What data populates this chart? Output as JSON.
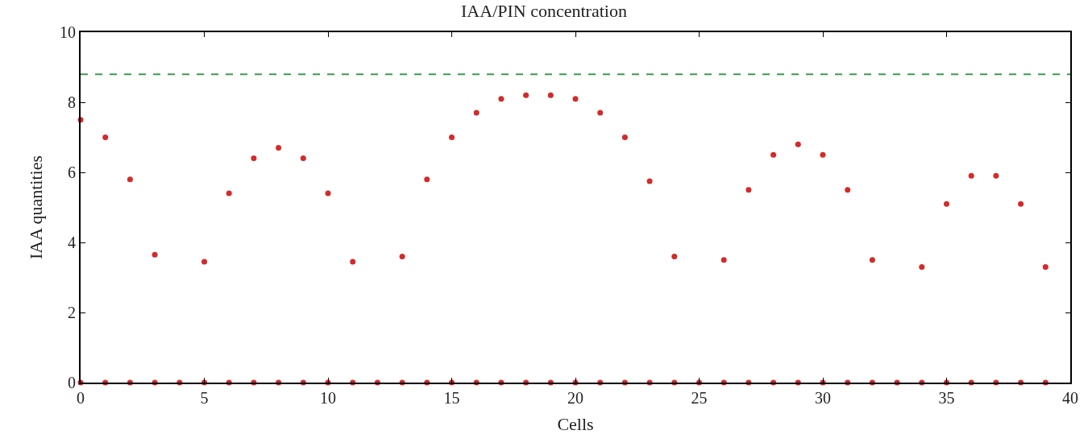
{
  "chart_data": {
    "type": "scatter",
    "title": "IAA/PIN concentration",
    "xlabel": "Cells",
    "ylabel": "IAA quantities",
    "x": [
      0,
      1,
      2,
      3,
      4,
      5,
      6,
      7,
      8,
      9,
      10,
      11,
      12,
      13,
      14,
      15,
      16,
      17,
      18,
      19,
      20,
      21,
      22,
      23,
      24,
      25,
      26,
      27,
      28,
      29,
      30,
      31,
      32,
      33,
      34,
      35,
      36,
      37,
      38,
      39
    ],
    "series": [
      {
        "color": "#d42a2a",
        "values": [
          7.5,
          7.0,
          5.8,
          3.65,
          null,
          3.45,
          5.4,
          6.4,
          6.7,
          6.4,
          5.4,
          3.45,
          null,
          3.6,
          5.8,
          7.0,
          7.7,
          8.1,
          8.2,
          8.2,
          8.1,
          7.7,
          7.0,
          5.75,
          3.6,
          null,
          3.5,
          5.5,
          6.5,
          6.8,
          6.5,
          5.5,
          3.5,
          null,
          3.3,
          5.1,
          5.9,
          5.9,
          5.1,
          3.3
        ]
      },
      {
        "color": "#d42a2a",
        "values": [
          0,
          0,
          0,
          0,
          0,
          0,
          0,
          0,
          0,
          0,
          0,
          0,
          0,
          0,
          0,
          0,
          0,
          0,
          0,
          0,
          0,
          0,
          0,
          0,
          0,
          0,
          0,
          0,
          0,
          0,
          0,
          0,
          0,
          0,
          0,
          0,
          0,
          0,
          0,
          0
        ]
      }
    ],
    "ref_lines": [
      {
        "axis": "y",
        "value": 8.8,
        "color": "#3c9a4c",
        "line_style": "dashed"
      }
    ],
    "xlim": [
      0,
      40
    ],
    "xticks": [
      0,
      5,
      10,
      15,
      20,
      25,
      30,
      35,
      40
    ],
    "ylim": [
      0,
      10
    ],
    "yticks": [
      0,
      2,
      4,
      6,
      8,
      10
    ],
    "marker": "circle"
  }
}
